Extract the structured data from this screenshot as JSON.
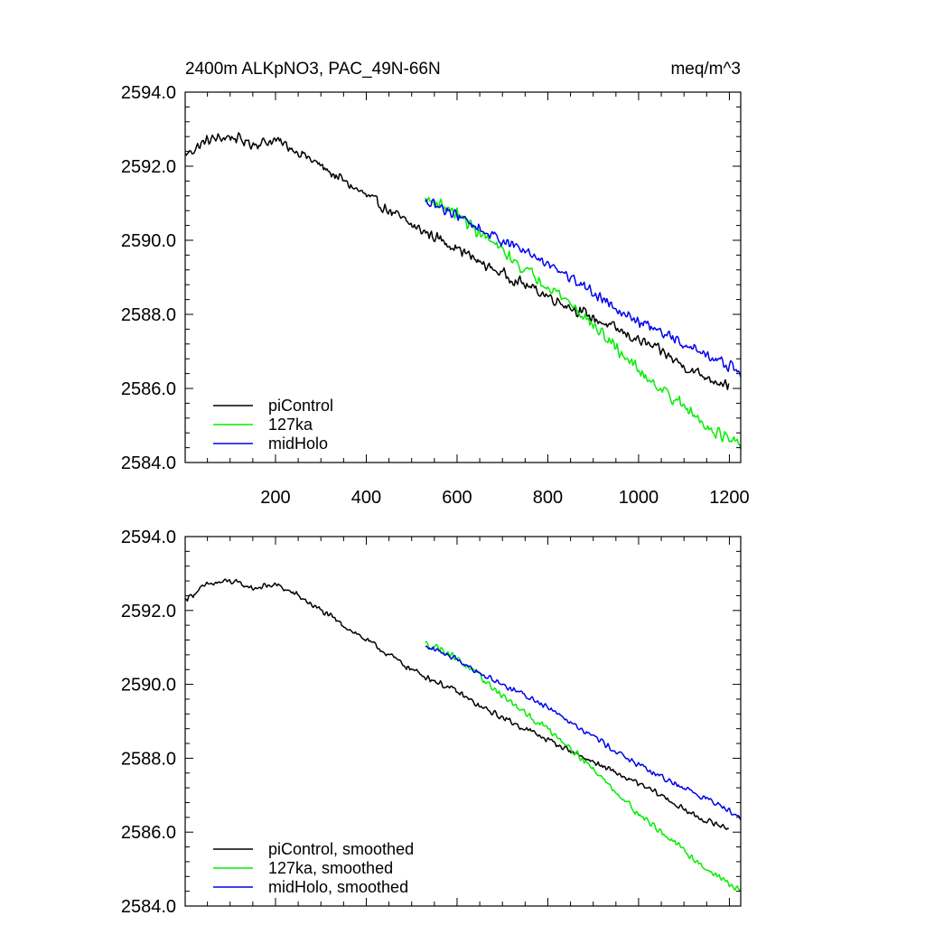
{
  "chart_data": [
    {
      "type": "line",
      "title": "2400m ALKpNO3, PAC_49N-66N",
      "units": "meq/m^3",
      "xlabel": "",
      "ylabel": "",
      "xlim": [
        1,
        1225
      ],
      "ylim": [
        2584.0,
        2594.0
      ],
      "xticks": [
        200,
        400,
        600,
        800,
        1000,
        1200
      ],
      "xtick_labels": [
        "200",
        "400",
        "600",
        "800",
        "1000",
        "1200"
      ],
      "yticks": [
        2584.0,
        2586.0,
        2588.0,
        2590.0,
        2592.0,
        2594.0
      ],
      "ytick_labels": [
        "2584.0",
        "2586.0",
        "2588.0",
        "2590.0",
        "2592.0",
        "2594.0"
      ],
      "legend_position": "bottom-left",
      "series": [
        {
          "name": "piControl",
          "color": "#000000",
          "x": [
            1,
            50,
            100,
            150,
            200,
            250,
            300,
            350,
            400,
            450,
            500,
            550,
            600,
            650,
            700,
            750,
            800,
            850,
            900,
            950,
            1000,
            1050,
            1100,
            1150,
            1200
          ],
          "values": [
            2592.3,
            2592.7,
            2592.8,
            2592.6,
            2592.7,
            2592.4,
            2592.0,
            2591.6,
            2591.2,
            2590.8,
            2590.4,
            2590.1,
            2589.8,
            2589.4,
            2589.1,
            2588.8,
            2588.5,
            2588.2,
            2587.9,
            2587.6,
            2587.3,
            2587.0,
            2586.6,
            2586.3,
            2586.1
          ],
          "noise": 0.18
        },
        {
          "name": "127ka",
          "color": "#00ee00",
          "x": [
            530,
            560,
            600,
            650,
            700,
            750,
            800,
            850,
            900,
            950,
            1000,
            1050,
            1100,
            1150,
            1200,
            1225
          ],
          "values": [
            2591.1,
            2591.0,
            2590.7,
            2590.2,
            2589.7,
            2589.2,
            2588.8,
            2588.3,
            2587.7,
            2587.1,
            2586.5,
            2586.0,
            2585.5,
            2585.0,
            2584.6,
            2584.4
          ],
          "noise": 0.2
        },
        {
          "name": "midHolo",
          "color": "#0000ee",
          "x": [
            530,
            560,
            600,
            650,
            700,
            750,
            800,
            850,
            900,
            950,
            1000,
            1050,
            1100,
            1150,
            1200,
            1225
          ],
          "values": [
            2591.0,
            2590.9,
            2590.7,
            2590.3,
            2590.0,
            2589.7,
            2589.4,
            2589.0,
            2588.6,
            2588.2,
            2587.8,
            2587.5,
            2587.2,
            2586.9,
            2586.6,
            2586.4
          ],
          "noise": 0.18
        }
      ]
    },
    {
      "type": "line",
      "title": "",
      "xlabel": "",
      "ylabel": "",
      "xlim": [
        1,
        1225
      ],
      "ylim": [
        2584.0,
        2594.0
      ],
      "xticks": [
        200,
        400,
        600,
        800,
        1000,
        1200
      ],
      "yticks": [
        2584.0,
        2586.0,
        2588.0,
        2590.0,
        2592.0,
        2594.0
      ],
      "ytick_labels": [
        "2584.0",
        "2586.0",
        "2588.0",
        "2590.0",
        "2592.0",
        "2594.0"
      ],
      "legend_position": "bottom-left",
      "series": [
        {
          "name": "piControl, smoothed",
          "color": "#000000",
          "x": [
            1,
            50,
            100,
            150,
            200,
            250,
            300,
            350,
            400,
            450,
            500,
            550,
            600,
            650,
            700,
            750,
            800,
            850,
            900,
            950,
            1000,
            1050,
            1100,
            1150,
            1200
          ],
          "values": [
            2592.3,
            2592.7,
            2592.8,
            2592.6,
            2592.7,
            2592.4,
            2592.0,
            2591.6,
            2591.2,
            2590.8,
            2590.4,
            2590.1,
            2589.8,
            2589.4,
            2589.1,
            2588.8,
            2588.5,
            2588.2,
            2587.9,
            2587.6,
            2587.3,
            2587.0,
            2586.6,
            2586.3,
            2586.1
          ],
          "noise": 0.1
        },
        {
          "name": "127ka, smoothed",
          "color": "#00ee00",
          "x": [
            530,
            560,
            600,
            650,
            700,
            750,
            800,
            850,
            900,
            950,
            1000,
            1050,
            1100,
            1150,
            1200,
            1225
          ],
          "values": [
            2591.1,
            2591.0,
            2590.7,
            2590.2,
            2589.7,
            2589.2,
            2588.8,
            2588.3,
            2587.7,
            2587.1,
            2586.5,
            2586.0,
            2585.5,
            2585.0,
            2584.6,
            2584.4
          ],
          "noise": 0.11
        },
        {
          "name": "midHolo, smoothed",
          "color": "#0000ee",
          "x": [
            530,
            560,
            600,
            650,
            700,
            750,
            800,
            850,
            900,
            950,
            1000,
            1050,
            1100,
            1150,
            1200,
            1225
          ],
          "values": [
            2591.0,
            2590.9,
            2590.7,
            2590.3,
            2590.0,
            2589.7,
            2589.4,
            2589.0,
            2588.6,
            2588.2,
            2587.8,
            2587.5,
            2587.2,
            2586.9,
            2586.6,
            2586.4
          ],
          "noise": 0.1
        }
      ]
    }
  ]
}
